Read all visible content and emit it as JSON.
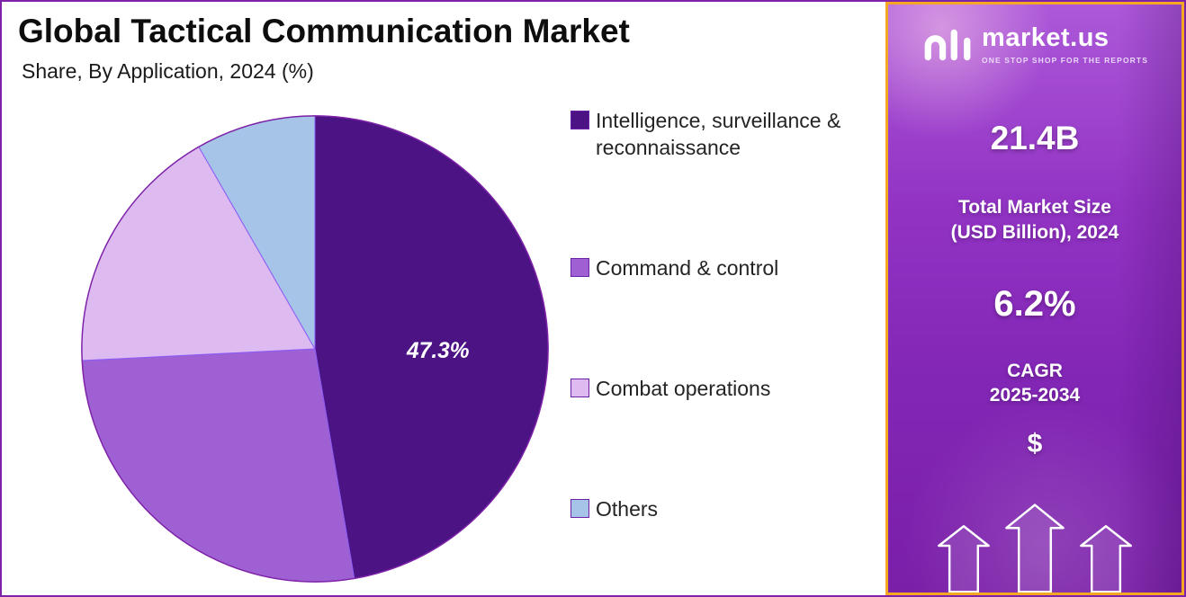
{
  "header": {
    "title": "Global Tactical Communication Market",
    "subtitle": "Share, By Application, 2024 (%)"
  },
  "chart_data": {
    "type": "pie",
    "title": "Global Tactical Communication Market Share, By Application, 2024 (%)",
    "labels": [
      "Intelligence, surveillance & reconnaissance",
      "Command & control",
      "Combat operations",
      "Others"
    ],
    "values": [
      47.3,
      26.9,
      17.5,
      8.3
    ],
    "colors": [
      "#4C1385",
      "#9E60D2",
      "#DDBAEF",
      "#A6C4E7"
    ],
    "value_suffix": "%",
    "start_angle_deg": 0,
    "direction": "clockwise",
    "data_labels_shown": [
      "47.3%",
      "",
      "",
      ""
    ],
    "legend_position": "right"
  },
  "sidebar": {
    "logo": {
      "brand": "market.us",
      "tagline": "ONE STOP SHOP FOR THE REPORTS"
    },
    "market_size_value": "21.4B",
    "market_size_label_line1": "Total Market Size",
    "market_size_label_line2": "(USD Billion), 2024",
    "cagr_value": "6.2%",
    "cagr_label_line1": "CAGR",
    "cagr_label_line2": "2025-2034",
    "dollar_symbol": "$",
    "colors": {
      "border": "#F5A623",
      "background_top": "#AC58D9",
      "background_bottom": "#7A1FA8",
      "text": "#FFFFFF"
    }
  }
}
